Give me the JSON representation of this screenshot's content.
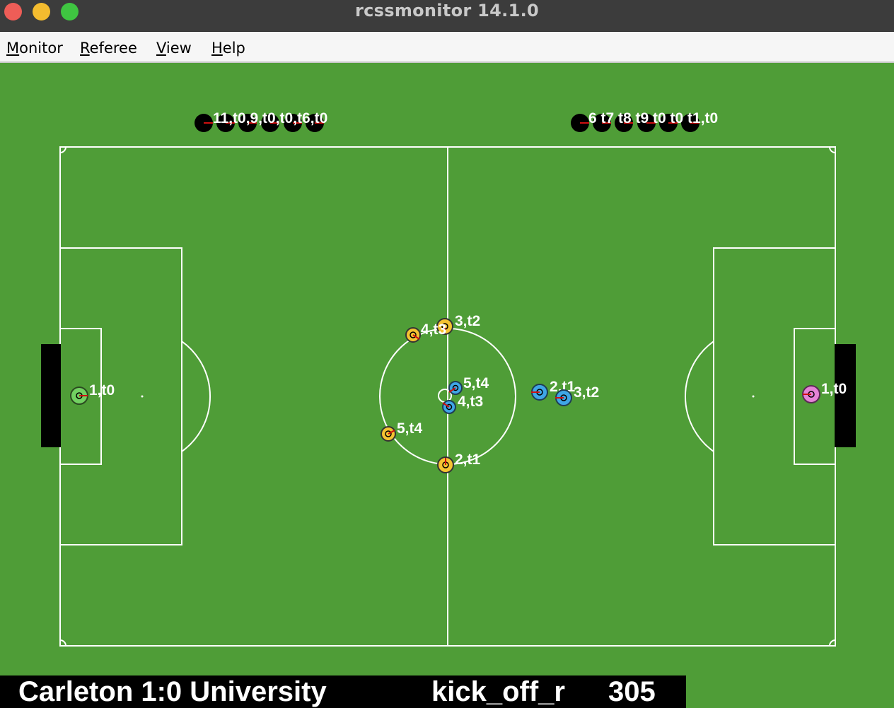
{
  "window": {
    "title": "rcssmonitor 14.1.0",
    "buttons": [
      "close-button",
      "minimize-button",
      "zoom-button"
    ]
  },
  "menu": [
    {
      "label": "Monitor",
      "mnemonic": "M",
      "rest": "onitor"
    },
    {
      "label": "Referee",
      "mnemonic": "R",
      "rest": "eferee"
    },
    {
      "label": "View",
      "mnemonic": "V",
      "rest": "iew"
    },
    {
      "label": "Help",
      "mnemonic": "H",
      "rest": "elp"
    }
  ],
  "colors": {
    "field": "#4f9d37",
    "lines": "#ffffff",
    "left_team": "#f5c331",
    "left_goalie": "#72d161",
    "right_team": "#3fa6e6",
    "right_goalie": "#e583d6",
    "bench": "#000000",
    "score_bar": "#000000"
  },
  "players": [
    {
      "team": "left",
      "label": "1,t0",
      "role": "goalie"
    },
    {
      "team": "left",
      "label": "2,t1"
    },
    {
      "team": "left",
      "label": "3,t2"
    },
    {
      "team": "left",
      "label": "4,t3"
    },
    {
      "team": "left",
      "label": "5,t4"
    },
    {
      "team": "right",
      "label": "1,t0",
      "role": "goalie"
    },
    {
      "team": "right",
      "label": "2,t1"
    },
    {
      "team": "right",
      "label": "3,t2"
    },
    {
      "team": "right",
      "label": "4,t3"
    },
    {
      "team": "right",
      "label": "5,t4"
    }
  ],
  "bench_left": {
    "labels": [
      "11,t0",
      "10,t0",
      "9,t0",
      "8,t0",
      "7,t0",
      "6,t0"
    ],
    "visible_text": "11,t0,9,t0,t0,t6,t0"
  },
  "bench_right": {
    "labels": [
      "6,t0",
      "7,t0",
      "8,t0",
      "9,t0",
      "10,t0",
      "11,t0"
    ],
    "visible_text": "6 t7 t8 t9 t0 t0 t1,t0"
  },
  "scoreboard": {
    "score": "Carleton 1:0 University",
    "playmode": "kick_off_r",
    "cycle": "305"
  }
}
